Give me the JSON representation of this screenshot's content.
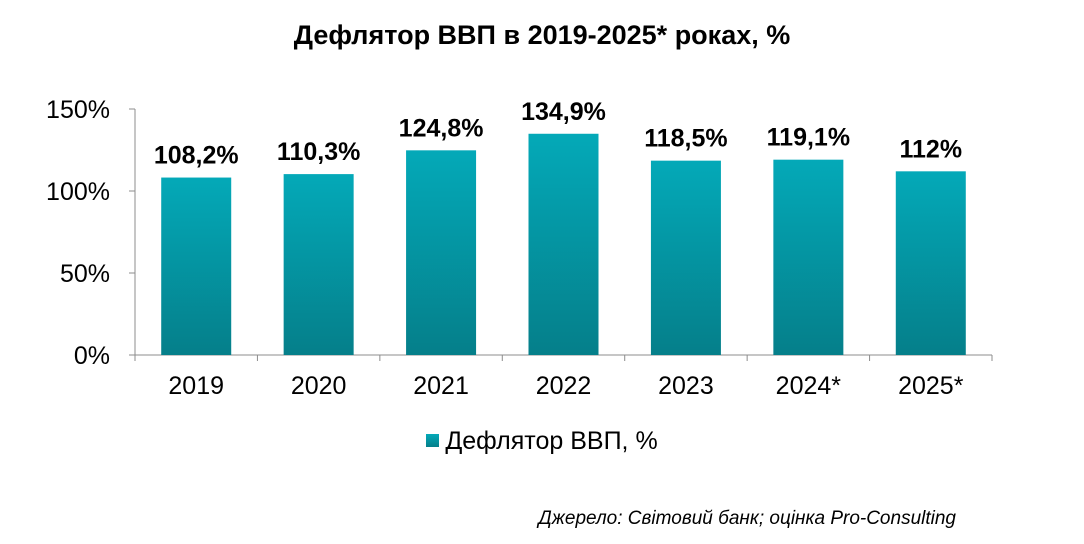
{
  "chart_data": {
    "type": "bar",
    "title": "Дефлятор ВВП в 2019-2025* роках, %",
    "categories": [
      "2019",
      "2020",
      "2021",
      "2022",
      "2023",
      "2024*",
      "2025*"
    ],
    "series": [
      {
        "name": "Дефлятор ВВП, %",
        "values": [
          108.2,
          110.3,
          124.8,
          134.9,
          118.5,
          119.1,
          112
        ],
        "labels": [
          "108,2%",
          "110,3%",
          "124,8%",
          "134,9%",
          "118,5%",
          "119,1%",
          "112%"
        ]
      }
    ],
    "yticks": [
      0,
      50,
      100,
      150
    ],
    "ytick_labels": [
      "0%",
      "50%",
      "100%",
      "150%"
    ],
    "ylim": [
      0,
      150
    ],
    "grid": false,
    "legend_position": "bottom",
    "colors": {
      "bar_top": "#04a9b8",
      "bar_bottom": "#057f8a",
      "axis": "#8c8c8c"
    }
  },
  "source": "Джерело: Світовий банк; оцінка Pro-Consulting"
}
